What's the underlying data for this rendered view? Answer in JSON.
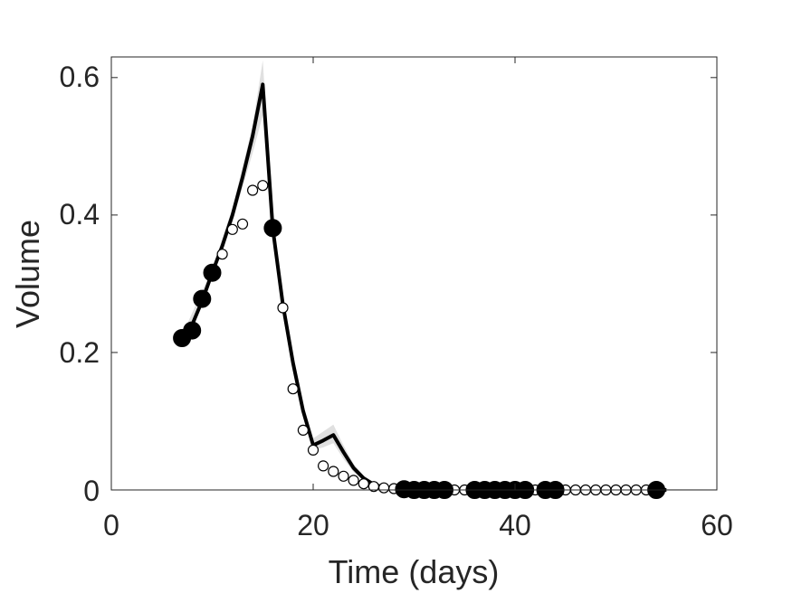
{
  "chart_data": {
    "type": "scatter",
    "title": "",
    "xlabel": "Time (days)",
    "ylabel": "Volume",
    "xlim": [
      0,
      60
    ],
    "ylim": [
      0,
      0.63
    ],
    "x_ticks": [
      "0",
      "20",
      "40",
      "60"
    ],
    "y_ticks": [
      "0",
      "0.2",
      "0.4",
      "0.6"
    ],
    "grid": false,
    "box": true,
    "colors": {
      "line": "#000000",
      "band": "#e0e0e0",
      "axis": "#262626",
      "text": "#262626"
    },
    "series": [
      {
        "style": "band",
        "x": [
          7,
          10,
          12,
          14,
          15,
          16,
          17,
          18,
          19,
          20,
          21,
          22,
          23,
          24,
          25,
          26,
          27,
          29,
          60
        ],
        "lower": [
          0.215,
          0.31,
          0.39,
          0.49,
          0.545,
          0.365,
          0.255,
          0.172,
          0.105,
          0.058,
          0.062,
          0.068,
          0.045,
          0.026,
          0.013,
          0.006,
          0.003,
          0.001,
          0.0
        ],
        "upper": [
          0.225,
          0.322,
          0.41,
          0.53,
          0.625,
          0.395,
          0.285,
          0.198,
          0.125,
          0.075,
          0.085,
          0.095,
          0.065,
          0.038,
          0.021,
          0.011,
          0.006,
          0.003,
          0.001
        ]
      },
      {
        "style": "line",
        "x": [
          7,
          8,
          9,
          10,
          11,
          12,
          13,
          14,
          15,
          16,
          17,
          18,
          19,
          20,
          21,
          22,
          23,
          24,
          25,
          26,
          27,
          28,
          29,
          30,
          35,
          40,
          45,
          50,
          55
        ],
        "y": [
          0.221,
          0.24,
          0.275,
          0.316,
          0.355,
          0.4,
          0.455,
          0.515,
          0.59,
          0.38,
          0.27,
          0.185,
          0.115,
          0.065,
          0.072,
          0.08,
          0.055,
          0.032,
          0.017,
          0.008,
          0.004,
          0.002,
          0.001,
          0.0005,
          0.0,
          0.0,
          0.0,
          0.0,
          0.0
        ]
      },
      {
        "style": "open-markers",
        "x": [
          11,
          12,
          13,
          14,
          15,
          17,
          18,
          19,
          20,
          21,
          22,
          23,
          24,
          25,
          26,
          27,
          28,
          29,
          30,
          31,
          32,
          33,
          34,
          35,
          36,
          37,
          38,
          39,
          40,
          41,
          42,
          43,
          44,
          45,
          46,
          47,
          48,
          49,
          50,
          51,
          52,
          53
        ],
        "y": [
          0.343,
          0.379,
          0.387,
          0.436,
          0.443,
          0.265,
          0.147,
          0.087,
          0.058,
          0.035,
          0.027,
          0.02,
          0.014,
          0.009,
          0.005,
          0.003,
          0.002,
          0.001,
          0.001,
          0.0,
          0.0,
          0.0,
          0.0,
          0.0,
          0.0,
          0.0,
          0.0,
          0.0,
          0.0,
          0.0,
          0.0,
          0.0,
          0.0,
          0.0,
          0.0,
          0.0,
          0.0,
          0.0,
          0.0,
          0.0,
          0.0,
          0.0
        ]
      },
      {
        "style": "filled-markers",
        "x": [
          7,
          8,
          9,
          10,
          16,
          29,
          30,
          31,
          32,
          33,
          36,
          37,
          38,
          39,
          40,
          41,
          43,
          44,
          54
        ],
        "y": [
          0.221,
          0.232,
          0.278,
          0.316,
          0.381,
          0.001,
          0.0,
          0.0,
          0.0,
          0.0,
          0.0,
          0.0,
          0.0,
          0.0,
          0.0,
          0.0,
          0.0,
          0.0,
          0.0
        ]
      }
    ]
  }
}
